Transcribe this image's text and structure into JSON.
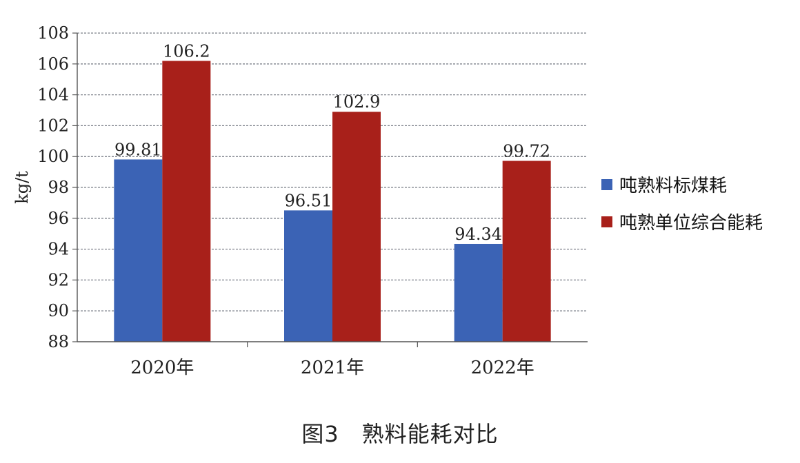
{
  "chart_data": {
    "type": "bar",
    "title": "",
    "xlabel": "",
    "ylabel": "kg/t",
    "ylim": [
      88,
      108
    ],
    "yticks": [
      88,
      90,
      92,
      94,
      96,
      98,
      100,
      102,
      104,
      106,
      108
    ],
    "grid": true,
    "legend_position": "right",
    "categories": [
      "2020年",
      "2021年",
      "2022年"
    ],
    "series": [
      {
        "name": "吨熟料标煤耗",
        "color": "#3b63b5",
        "values": [
          99.81,
          96.51,
          94.34
        ],
        "labels": [
          "99.81",
          "96.51",
          "94.34"
        ]
      },
      {
        "name": "吨熟单位综合能耗",
        "color": "#a8201a",
        "values": [
          106.2,
          102.9,
          99.72
        ],
        "labels": [
          "106.2",
          "102.9",
          "99.72"
        ]
      }
    ]
  },
  "caption": "图3　熟料能耗对比"
}
